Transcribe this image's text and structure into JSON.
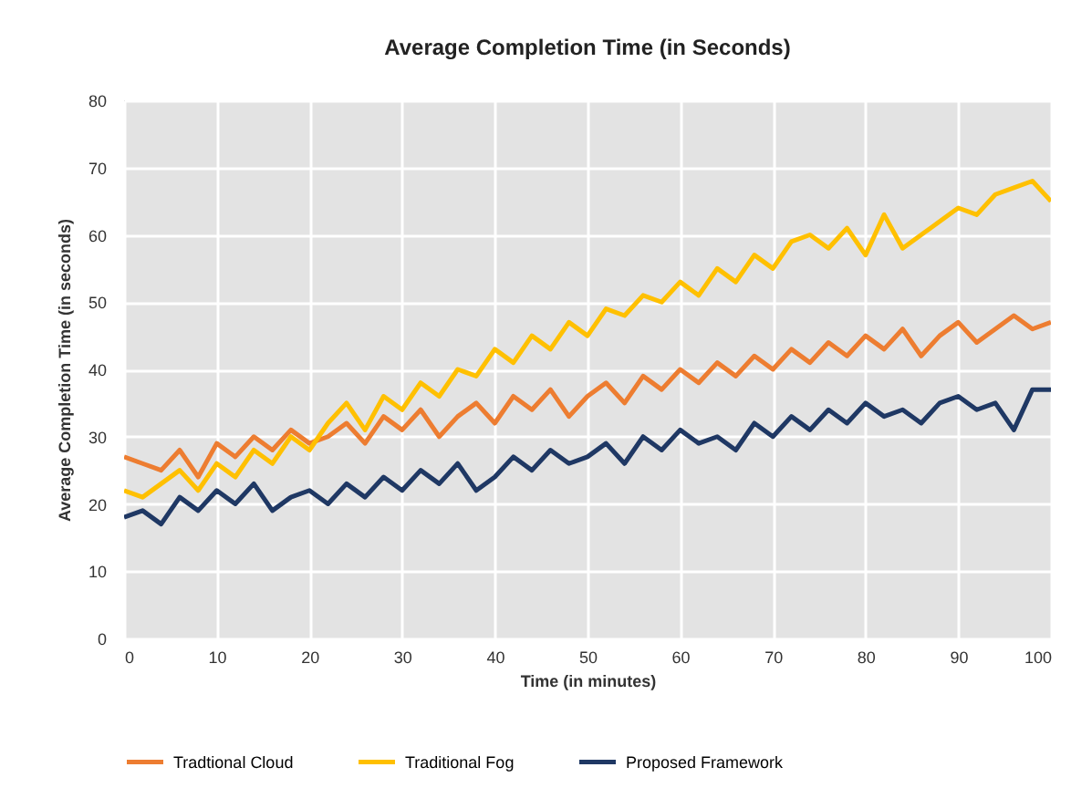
{
  "chart_data": {
    "type": "line",
    "title": "Average Completion Time (in Seconds)",
    "xlabel": "Time (in minutes)",
    "ylabel": "Average Completion Time (in seconds)",
    "x": [
      0,
      2,
      4,
      6,
      8,
      10,
      12,
      14,
      16,
      18,
      20,
      22,
      24,
      26,
      28,
      30,
      32,
      34,
      36,
      38,
      40,
      42,
      44,
      46,
      48,
      50,
      52,
      54,
      56,
      58,
      60,
      62,
      64,
      66,
      68,
      70,
      72,
      74,
      76,
      78,
      80,
      82,
      84,
      86,
      88,
      90,
      92,
      94,
      96,
      98,
      100
    ],
    "series": [
      {
        "name": "Tradtional Cloud",
        "color": "#ed7d31",
        "values": [
          27,
          26,
          25,
          28,
          24,
          29,
          27,
          30,
          28,
          31,
          29,
          30,
          32,
          29,
          33,
          31,
          34,
          30,
          33,
          35,
          32,
          36,
          34,
          37,
          33,
          36,
          38,
          35,
          39,
          37,
          40,
          38,
          41,
          39,
          42,
          40,
          43,
          41,
          44,
          42,
          45,
          43,
          46,
          42,
          45,
          47,
          44,
          46,
          48,
          46,
          47
        ]
      },
      {
        "name": "Traditional Fog",
        "color": "#ffc000",
        "values": [
          22,
          21,
          23,
          25,
          22,
          26,
          24,
          28,
          26,
          30,
          28,
          32,
          35,
          31,
          36,
          34,
          38,
          36,
          40,
          39,
          43,
          41,
          45,
          43,
          47,
          45,
          49,
          48,
          51,
          50,
          53,
          51,
          55,
          53,
          57,
          55,
          59,
          60,
          58,
          61,
          57,
          63,
          58,
          60,
          62,
          64,
          63,
          66,
          67,
          68,
          65
        ]
      },
      {
        "name": "Proposed Framework",
        "color": "#1f3864",
        "values": [
          18,
          19,
          17,
          21,
          19,
          22,
          20,
          23,
          19,
          21,
          22,
          20,
          23,
          21,
          24,
          22,
          25,
          23,
          26,
          22,
          24,
          27,
          25,
          28,
          26,
          27,
          29,
          26,
          30,
          28,
          31,
          29,
          30,
          28,
          32,
          30,
          33,
          31,
          34,
          32,
          35,
          33,
          34,
          32,
          35,
          36,
          34,
          35,
          31,
          37,
          37
        ]
      }
    ],
    "xlim": [
      0,
      100
    ],
    "xticks": [
      0,
      10,
      20,
      30,
      40,
      50,
      60,
      70,
      80,
      90,
      100
    ],
    "ylim": [
      0,
      80
    ],
    "yticks": [
      0,
      10,
      20,
      30,
      40,
      50,
      60,
      70,
      80
    ],
    "grid": true,
    "legend": "bottom",
    "marker": "none",
    "line_style": "solid"
  }
}
